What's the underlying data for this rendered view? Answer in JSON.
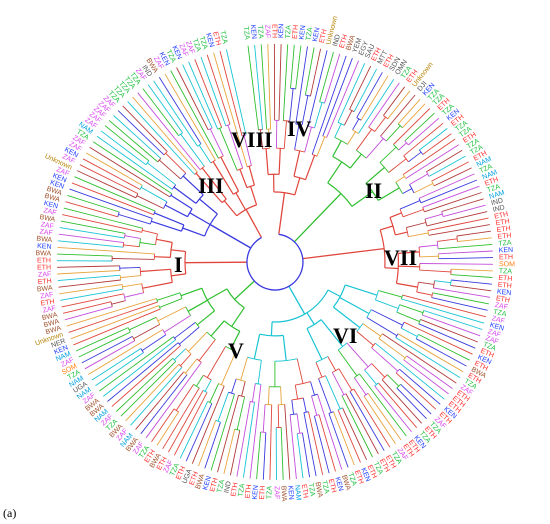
{
  "figure": {
    "panel_label": "(a)",
    "clade_labels": [
      "I",
      "II",
      "III",
      "IV",
      "V",
      "VI",
      "VII",
      "VIII"
    ]
  },
  "leaf_label_colors": {
    "ETH": "#ff2d2d",
    "TZA": "#1fbf3f",
    "KEN": "#1e3cff",
    "ZAF": "#d946ef",
    "BWA": "#a0522d",
    "NAM": "#00a0e0",
    "SOM": "#ff7f0e",
    "Unknown": "#b8860b",
    "other": "#555555"
  },
  "branch_colors": [
    "#e0463c",
    "#2fbf2f",
    "#3a3adf",
    "#c44ddb",
    "#e8a33c",
    "#18c4d4",
    "#b23a3a"
  ],
  "tip_labels": [
    "TZA",
    "KEN",
    "TZA",
    "ZAF",
    "ETH",
    "KEN",
    "TZA",
    "ETH",
    "KEN",
    "TZA",
    "KEN",
    "ETH",
    "Unknown",
    "IND",
    "ETH",
    "BWA",
    "YEM",
    "EGY",
    "SAU",
    "ETH",
    "MTT",
    "ETH",
    "SDN",
    "OMN",
    "TZA",
    "ETH",
    "Unknown",
    "DJI",
    "KEN",
    "TZA",
    "TZA",
    "ETH",
    "TZA",
    "KEN",
    "ETH",
    "TZA",
    "TZA",
    "ETH",
    "TZA",
    "TZA",
    "ETH",
    "NAM",
    "TZA",
    "NAM",
    "ETH",
    "TZA",
    "NAM",
    "IND",
    "IND",
    "ETH",
    "ETH",
    "ETH",
    "ETH",
    "TZA",
    "KEN",
    "ETH",
    "SOM",
    "TZA",
    "ETH",
    "ETH",
    "KEN",
    "ETH",
    "ZAF",
    "TZA",
    "ZAF",
    "KEN",
    "ZAF",
    "ZAF",
    "TZA",
    "ETH",
    "KEN",
    "ETH",
    "BWA",
    "ETH",
    "TZA",
    "ZAF",
    "ETH",
    "ETH",
    "ETH",
    "KEN",
    "ETH",
    "ZAF",
    "TZA",
    "ETH",
    "TZA",
    "KEN",
    "ETH",
    "ETH",
    "ZAF",
    "TZA",
    "ETH",
    "ETH",
    "TZA",
    "ETH",
    "KEN",
    "ETH",
    "TZA",
    "BWA",
    "KEN",
    "ETH",
    "TZA",
    "BWA",
    "TZA",
    "ETH",
    "NAM",
    "KEN",
    "BWA",
    "ZAF",
    "TZA",
    "ETH",
    "KEN",
    "ETH",
    "TZA",
    "ETH",
    "IND",
    "TZA",
    "ETH",
    "KEN",
    "BWA",
    "ETH",
    "UGA",
    "ETH",
    "TZA",
    "ZAF",
    "ETH",
    "BWA",
    "ETH",
    "TZA",
    "ZAF",
    "BWA",
    "NAM",
    "ZAF",
    "BWA",
    "TZA",
    "ZAF",
    "NAM",
    "BWA",
    "BWA",
    "ZAF",
    "NAM",
    "UGA",
    "NAM",
    "TZA",
    "SOM",
    "ZAF",
    "NAM",
    "KEN",
    "NER",
    "Unknown",
    "BWA",
    "BWA",
    "BWA",
    "ZAF",
    "ETH",
    "ZAF",
    "BWA",
    "ETH",
    "ZAF",
    "ETH",
    "ETH",
    "BWA",
    "KEN",
    "BWA",
    "ZAF",
    "ZAF",
    "BWA",
    "ZAF",
    "KEN",
    "BWA",
    "BWA",
    "KEN",
    "KEN",
    "ZAF",
    "Unknown",
    "ZAF",
    "KEN",
    "ZAF",
    "ZAF",
    "TZA",
    "NAM",
    "ZAF",
    "ZAF",
    "ZAF",
    "ZAF",
    "ZAF",
    "TZA",
    "TZA",
    "TZA",
    "TZA",
    "TZA",
    "ZAF",
    "IND",
    "BWA",
    "ZAF",
    "KEN",
    "TZA",
    "KEN",
    "ZAF",
    "ZAF",
    "TZA",
    "TZA",
    "KEN",
    "ETH",
    "TZA"
  ]
}
